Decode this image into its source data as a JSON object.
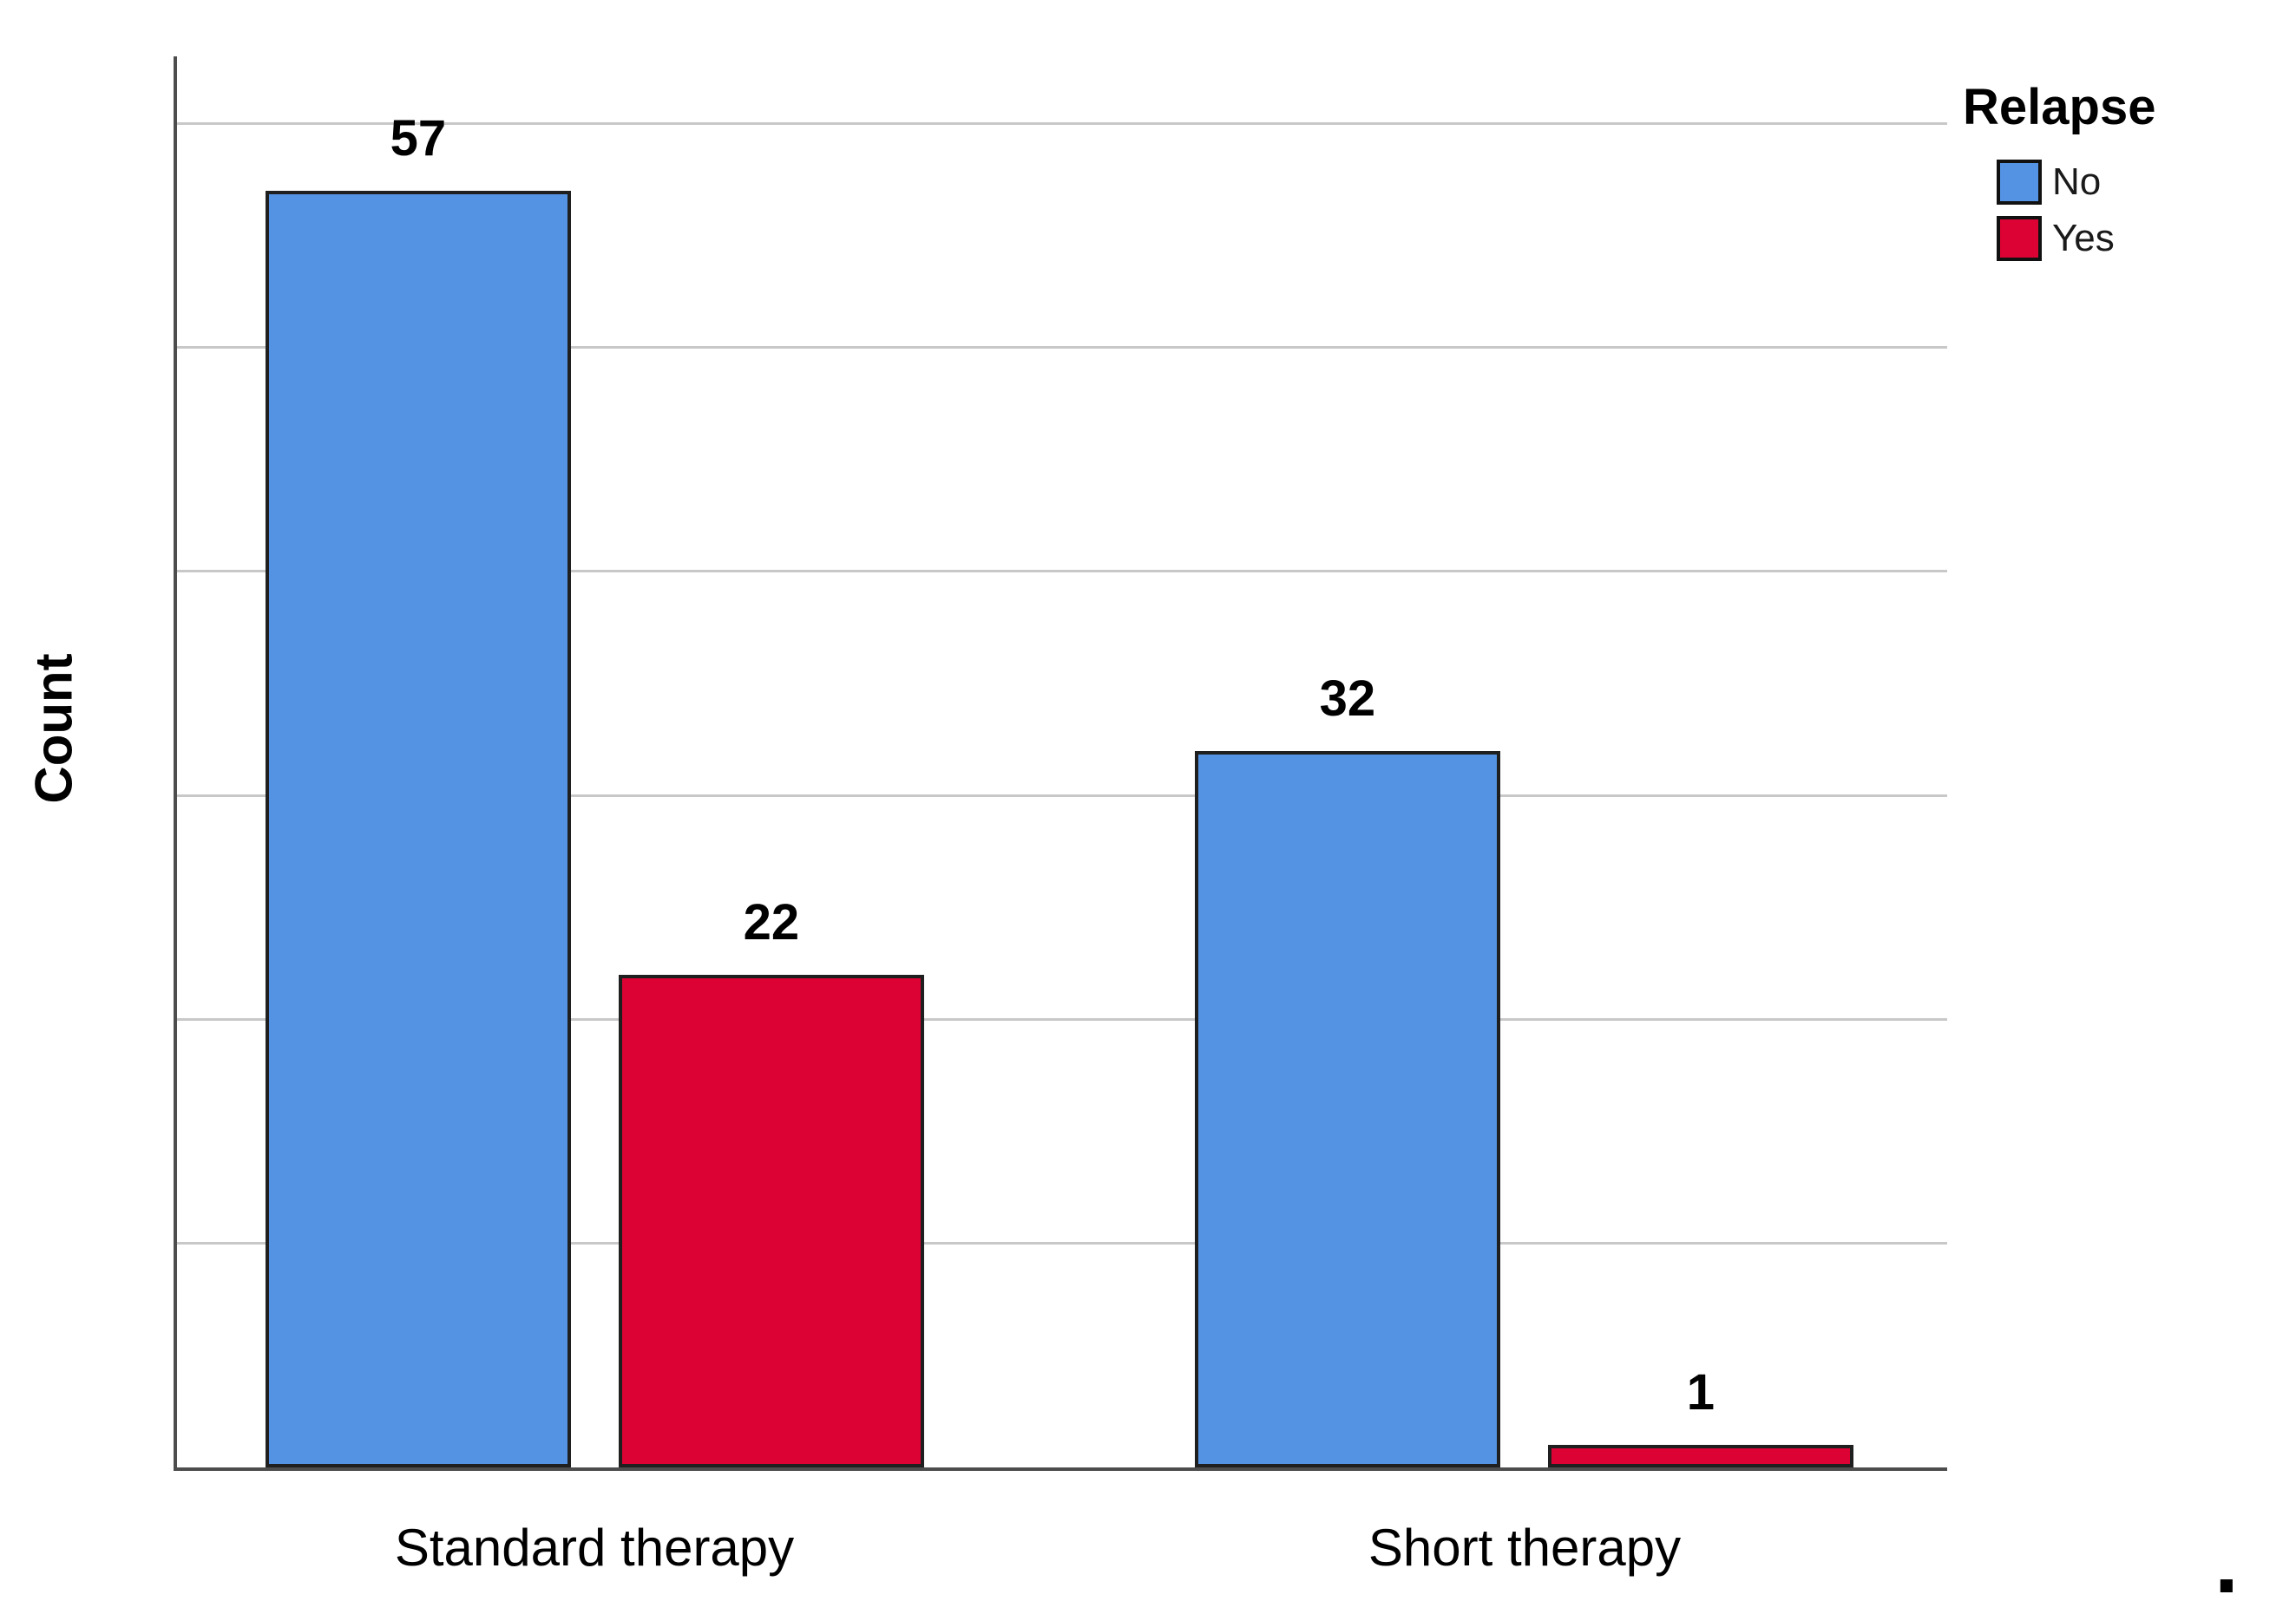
{
  "chart_data": {
    "type": "bar",
    "title": "",
    "ylabel": "Count",
    "xlabel": "",
    "categories": [
      "Standard therapy",
      "Short therapy"
    ],
    "series": [
      {
        "name": "No",
        "color": "#5493e3",
        "values": [
          57,
          32
        ]
      },
      {
        "name": "Yes",
        "color": "#dc0233",
        "values": [
          22,
          1
        ]
      }
    ],
    "legend_title": "Relapse",
    "legend_position": "top-right",
    "ylim": [
      0,
      63
    ],
    "gridline_values": [
      10,
      20,
      30,
      40,
      50,
      60
    ],
    "grid": "horizontal",
    "y_tick_labels_shown": false,
    "bar_labels_shown": true,
    "bar_border_color": "#1f1f1f",
    "gridline_color": "#c8c8c8",
    "axis_color": "#4d4d4d"
  },
  "annotations": {
    "stray_dot": "."
  }
}
